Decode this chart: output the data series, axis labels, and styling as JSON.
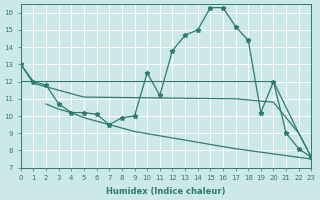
{
  "background_color": "#cde8e8",
  "grid_color": "#b8d8d8",
  "line_color": "#2d7b6f",
  "xlabel": "Humidex (Indice chaleur)",
  "xlim": [
    0,
    23
  ],
  "ylim": [
    7,
    16.5
  ],
  "xticks": [
    0,
    1,
    2,
    3,
    4,
    5,
    6,
    7,
    8,
    9,
    10,
    11,
    12,
    13,
    14,
    15,
    16,
    17,
    18,
    19,
    20,
    21,
    22,
    23
  ],
  "yticks": [
    7,
    8,
    9,
    10,
    11,
    12,
    13,
    14,
    15,
    16
  ],
  "curve1_x": [
    0,
    1,
    2,
    3,
    4,
    5,
    6,
    7,
    8,
    9,
    10,
    11,
    12,
    13,
    14,
    15,
    16,
    17,
    18,
    19,
    20,
    21,
    22,
    23
  ],
  "curve1_y": [
    13,
    12,
    11.8,
    10.7,
    10.2,
    10.2,
    10.1,
    9.5,
    9.9,
    10.0,
    12.5,
    11.2,
    13.8,
    14.7,
    15.0,
    16.3,
    16.3,
    15.2,
    14.4,
    10.2,
    12.0,
    9.0,
    8.1,
    7.6
  ],
  "curve2_x": [
    0,
    1,
    17,
    20,
    22,
    23
  ],
  "curve2_y": [
    12,
    12,
    12,
    12,
    9.0,
    7.6
  ],
  "curve3_x": [
    0,
    1,
    2,
    3,
    4,
    5,
    17,
    20,
    22,
    23
  ],
  "curve3_y": [
    13,
    11.9,
    11.7,
    11.5,
    11.3,
    11.1,
    11.0,
    10.8,
    9.0,
    7.6
  ],
  "curve4_x": [
    2,
    3,
    4,
    5,
    6,
    7,
    8,
    9,
    17,
    20,
    22,
    23
  ],
  "curve4_y": [
    10.7,
    10.4,
    10.2,
    9.9,
    9.7,
    9.5,
    9.3,
    9.1,
    8.1,
    7.8,
    7.6,
    7.5
  ]
}
